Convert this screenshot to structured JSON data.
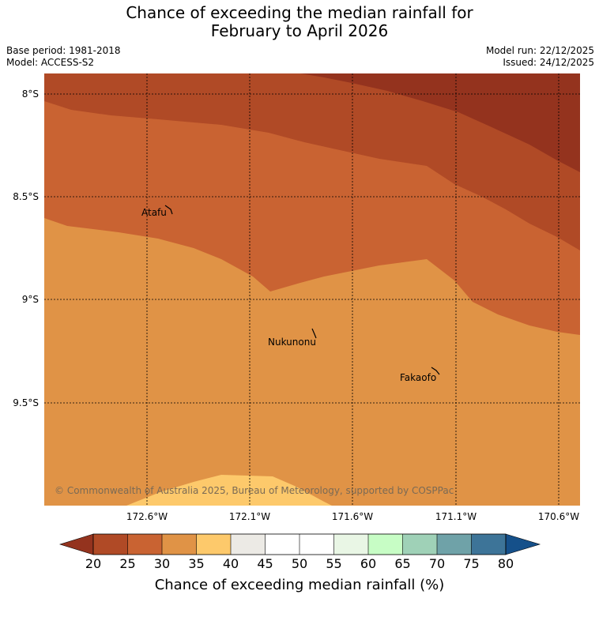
{
  "title_line1": "Chance of exceeding the median rainfall for",
  "title_line2": "February to April 2026",
  "meta": {
    "base_period": "Base period: 1981-2018",
    "model": "Model: ACCESS-S2",
    "model_run": "Model run: 22/12/2025",
    "issued": "Issued: 24/12/2025"
  },
  "axes": {
    "lat_labels": [
      "8°S",
      "8.5°S",
      "9°S",
      "9.5°S"
    ],
    "lon_labels": [
      "172.6°W",
      "172.1°W",
      "171.6°W",
      "171.1°W",
      "170.6°W"
    ]
  },
  "places": [
    "Atafu",
    "Nukunonu",
    "Fakaofo"
  ],
  "copyright": "© Commonwealth of Australia 2025, Bureau of Meteorology, supported by COSPPac",
  "colorbar": {
    "label": "Chance of exceeding median rainfall (%)",
    "ticks": [
      "20",
      "25",
      "30",
      "35",
      "40",
      "45",
      "50",
      "55",
      "60",
      "65",
      "70",
      "75",
      "80"
    ],
    "colors": {
      "below20": "#94331e",
      "20-25": "#b04a26",
      "25-30": "#c96332",
      "30-35": "#e09346",
      "35-40": "#fdc96b",
      "40-45": "#eceae5",
      "45-50": "#ffffff",
      "50-55": "#ffffff",
      "55-60": "#e9f6e5",
      "60-65": "#c7fdc5",
      "65-70": "#9fd1b7",
      "70-75": "#6fa2a8",
      "75-80": "#3d7498",
      "above80": "#15508a"
    }
  }
}
